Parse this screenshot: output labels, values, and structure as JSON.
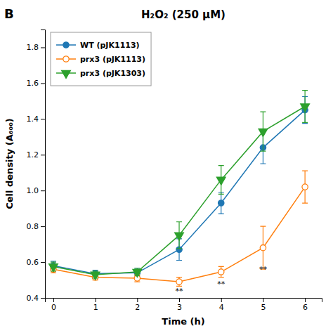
{
  "chart_data": {
    "type": "line",
    "title": "H₂O₂ (250 μM)",
    "panel_label": "B",
    "x_label": "Time (h)",
    "y_label": "Cell density (A₆₀₀)",
    "x": [
      0,
      1,
      2,
      3,
      4,
      5,
      6
    ],
    "series": [
      {
        "name": "WT (pJK1113)",
        "marker": "circle",
        "values": [
          0.58,
          0.535,
          0.54,
          0.67,
          0.93,
          1.24,
          1.45
        ],
        "errors": [
          0.025,
          0.02,
          0.025,
          0.06,
          0.06,
          0.09,
          0.075
        ]
      },
      {
        "name": "prx3 (pJK1113)",
        "marker": "circle-open",
        "values": [
          0.56,
          0.515,
          0.51,
          0.49,
          0.545,
          0.68,
          1.02
        ],
        "errors": [
          0.02,
          0.015,
          0.02,
          0.025,
          0.03,
          0.12,
          0.09
        ]
      },
      {
        "name": "prx3 (pJK1303)",
        "marker": "triangle-down",
        "values": [
          0.575,
          0.53,
          0.545,
          0.75,
          1.06,
          1.33,
          1.47
        ],
        "errors": [
          0.025,
          0.02,
          0.02,
          0.075,
          0.08,
          0.11,
          0.09
        ]
      }
    ],
    "annotations": [
      {
        "text": "**",
        "x": 3,
        "y": 0.455
      },
      {
        "text": "**",
        "x": 4,
        "y": 0.495
      },
      {
        "text": "**",
        "x": 5,
        "y": 0.575
      }
    ],
    "xlim": [
      -0.2,
      6.4
    ],
    "ylim": [
      0.4,
      1.9
    ],
    "xticks": [
      0,
      1,
      2,
      3,
      4,
      5,
      6
    ],
    "yticks": [
      0.4,
      0.6,
      0.8,
      {
        "value": 1,
        "label": "1.0"
      },
      1.2,
      1.4,
      1.6,
      1.8
    ],
    "grid": false,
    "legend": "upper left"
  }
}
